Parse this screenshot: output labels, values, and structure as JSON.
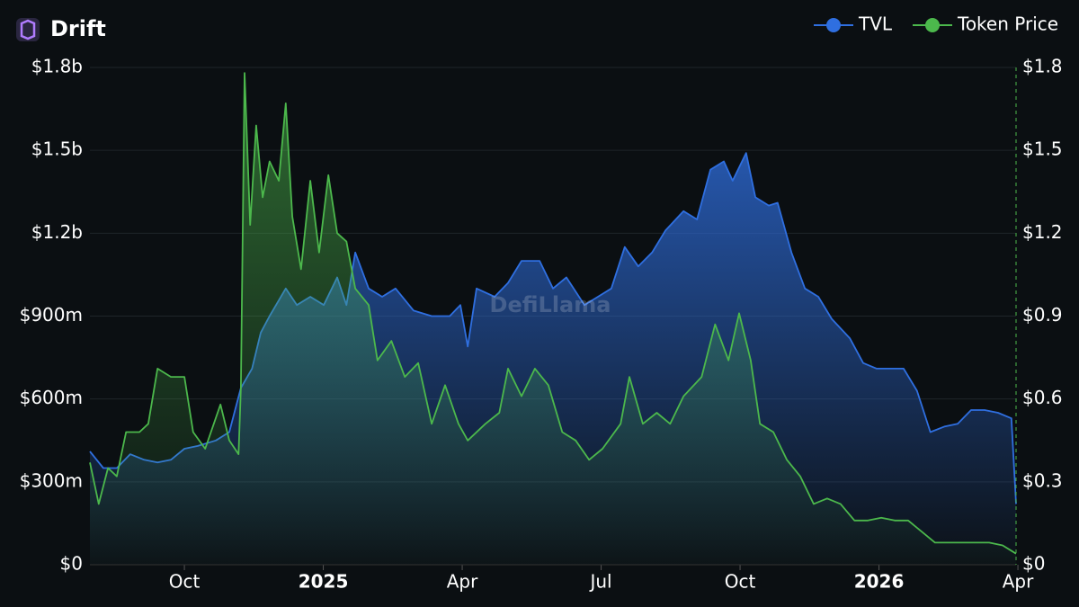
{
  "chart_data": {
    "type": "line",
    "title": "Drift",
    "watermark": "DefiLlama",
    "legend": "top-right",
    "grid": true,
    "xlim": [
      6.96,
      26.96
    ],
    "xticks": [
      {
        "value": 9,
        "label": "Oct"
      },
      {
        "value": 12,
        "label": "2025"
      },
      {
        "value": 15,
        "label": "Apr"
      },
      {
        "value": 18,
        "label": "Jul"
      },
      {
        "value": 21,
        "label": "Oct"
      },
      {
        "value": 24,
        "label": "2026"
      },
      {
        "value": 27,
        "label": "Apr"
      }
    ],
    "ylim": [
      0,
      1800000000
    ],
    "yticks": [
      {
        "value": 0,
        "label": "$0"
      },
      {
        "value": 300000000,
        "label": "$300m"
      },
      {
        "value": 600000000,
        "label": "$600m"
      },
      {
        "value": 900000000,
        "label": "$900m"
      },
      {
        "value": 1200000000,
        "label": "$1.2b"
      },
      {
        "value": 1500000000,
        "label": "$1.5b"
      },
      {
        "value": 1800000000,
        "label": "$1.8b"
      }
    ],
    "y2lim": [
      0,
      1.8
    ],
    "y2ticks": [
      {
        "value": 0,
        "label": "$0"
      },
      {
        "value": 0.3,
        "label": "$0.3"
      },
      {
        "value": 0.6,
        "label": "$0.6"
      },
      {
        "value": 0.9,
        "label": "$0.9"
      },
      {
        "value": 1.2,
        "label": "$1.2"
      },
      {
        "value": 1.5,
        "label": "$1.5"
      },
      {
        "value": 1.8,
        "label": "$1.8"
      }
    ],
    "series": [
      {
        "name": "TVL",
        "color": "#2f6fe0",
        "axis": "y",
        "x": [
          6.96,
          7.25,
          7.54,
          7.83,
          8.13,
          8.42,
          8.71,
          9.0,
          9.29,
          9.68,
          9.97,
          10.22,
          10.46,
          10.65,
          10.84,
          11.19,
          11.43,
          11.72,
          12.01,
          12.3,
          12.5,
          12.69,
          12.98,
          13.27,
          13.56,
          13.95,
          14.34,
          14.73,
          14.96,
          15.12,
          15.31,
          15.7,
          15.99,
          16.28,
          16.67,
          16.96,
          17.25,
          17.64,
          17.93,
          18.22,
          18.51,
          18.8,
          19.1,
          19.39,
          19.78,
          20.07,
          20.36,
          20.65,
          20.84,
          21.13,
          21.33,
          21.62,
          21.81,
          22.11,
          22.4,
          22.69,
          22.98,
          23.37,
          23.66,
          23.95,
          24.24,
          24.53,
          24.82,
          25.11,
          25.41,
          25.7,
          25.99,
          26.28,
          26.57,
          26.86,
          26.96
        ],
        "values": [
          410000000,
          350000000,
          350000000,
          400000000,
          380000000,
          370000000,
          380000000,
          420000000,
          430000000,
          450000000,
          480000000,
          640000000,
          710000000,
          840000000,
          900000000,
          1000000000,
          940000000,
          970000000,
          940000000,
          1040000000,
          940000000,
          1130000000,
          1000000000,
          970000000,
          1000000000,
          920000000,
          900000000,
          900000000,
          940000000,
          790000000,
          1000000000,
          970000000,
          1020000000,
          1100000000,
          1100000000,
          1000000000,
          1040000000,
          940000000,
          970000000,
          1000000000,
          1150000000,
          1080000000,
          1130000000,
          1210000000,
          1280000000,
          1250000000,
          1430000000,
          1460000000,
          1390000000,
          1490000000,
          1330000000,
          1300000000,
          1310000000,
          1130000000,
          1000000000,
          970000000,
          890000000,
          820000000,
          730000000,
          710000000,
          710000000,
          710000000,
          630000000,
          480000000,
          500000000,
          510000000,
          560000000,
          560000000,
          550000000,
          530000000,
          220000000
        ]
      },
      {
        "name": "Token Price",
        "color": "#4cb84c",
        "axis": "y2",
        "x": [
          6.96,
          7.15,
          7.35,
          7.54,
          7.74,
          8.03,
          8.22,
          8.42,
          8.71,
          9.0,
          9.19,
          9.45,
          9.78,
          9.97,
          10.17,
          10.22,
          10.3,
          10.42,
          10.55,
          10.69,
          10.84,
          11.04,
          11.19,
          11.33,
          11.52,
          11.72,
          11.91,
          12.11,
          12.3,
          12.5,
          12.69,
          12.98,
          13.17,
          13.47,
          13.76,
          14.05,
          14.34,
          14.63,
          14.92,
          15.12,
          15.5,
          15.8,
          15.99,
          16.28,
          16.57,
          16.86,
          17.16,
          17.45,
          17.74,
          18.03,
          18.42,
          18.61,
          18.9,
          19.2,
          19.49,
          19.78,
          20.17,
          20.46,
          20.75,
          20.98,
          21.23,
          21.43,
          21.72,
          22.01,
          22.3,
          22.59,
          22.88,
          23.17,
          23.47,
          23.76,
          24.05,
          24.34,
          24.63,
          24.92,
          25.21,
          25.6,
          25.99,
          26.38,
          26.67,
          26.96
        ],
        "values": [
          0.37,
          0.22,
          0.35,
          0.32,
          0.48,
          0.48,
          0.51,
          0.71,
          0.68,
          0.68,
          0.48,
          0.42,
          0.58,
          0.45,
          0.4,
          0.64,
          1.78,
          1.23,
          1.59,
          1.33,
          1.46,
          1.39,
          1.67,
          1.26,
          1.07,
          1.39,
          1.13,
          1.41,
          1.2,
          1.17,
          1.0,
          0.94,
          0.74,
          0.81,
          0.68,
          0.73,
          0.51,
          0.65,
          0.51,
          0.45,
          0.51,
          0.55,
          0.71,
          0.61,
          0.71,
          0.65,
          0.48,
          0.45,
          0.38,
          0.42,
          0.51,
          0.68,
          0.51,
          0.55,
          0.51,
          0.61,
          0.68,
          0.87,
          0.74,
          0.91,
          0.74,
          0.51,
          0.48,
          0.38,
          0.32,
          0.22,
          0.24,
          0.22,
          0.16,
          0.16,
          0.17,
          0.16,
          0.16,
          0.12,
          0.08,
          0.08,
          0.08,
          0.08,
          0.07,
          0.04
        ]
      }
    ]
  }
}
